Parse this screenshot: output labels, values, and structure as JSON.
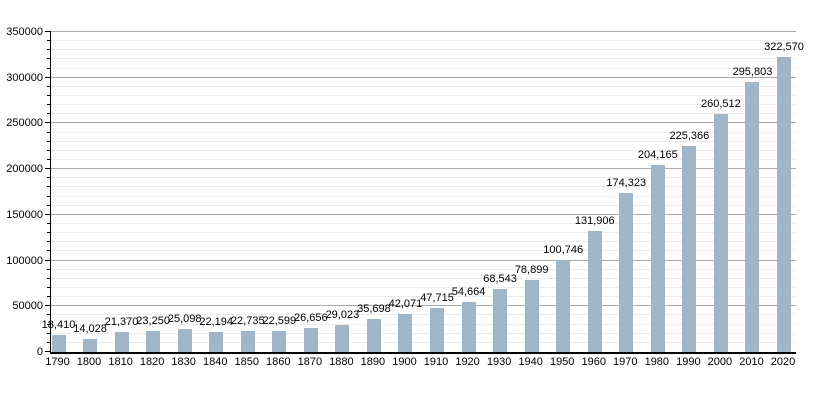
{
  "chart_data": {
    "type": "bar",
    "title": "",
    "xlabel": "",
    "ylabel": "",
    "categories": [
      "1790",
      "1800",
      "1810",
      "1820",
      "1830",
      "1840",
      "1850",
      "1860",
      "1870",
      "1880",
      "1890",
      "1900",
      "1910",
      "1920",
      "1930",
      "1940",
      "1950",
      "1960",
      "1970",
      "1980",
      "1990",
      "2000",
      "2010",
      "2020"
    ],
    "values": [
      18410,
      14028,
      21370,
      23250,
      25098,
      22194,
      22735,
      22599,
      26656,
      29023,
      35698,
      42071,
      47715,
      54664,
      68543,
      78899,
      100746,
      131906,
      174323,
      204165,
      225366,
      260512,
      295803,
      322570
    ],
    "value_labels": [
      "18,410",
      "14,028",
      "21,370",
      "23,250",
      "25,098",
      "22,194",
      "22,735",
      "22,599",
      "26,656",
      "29,023",
      "35,698",
      "42,071",
      "47,715",
      "54,664",
      "68,543",
      "78,899",
      "100,746",
      "131,906",
      "174,323",
      "204,165",
      "225,366",
      "260,512",
      "295,803",
      "322,570"
    ],
    "ylim": [
      0,
      350000
    ],
    "y_major_step": 50000,
    "y_minor_step": 10000,
    "y_tick_labels": [
      "0",
      "50000",
      "100000",
      "150000",
      "200000",
      "250000",
      "300000",
      "350000"
    ],
    "grid": true,
    "legend": "none",
    "colors": {
      "bar": "#a0b5c8",
      "major_grid": "#ababab",
      "minor_grid": "#ececec",
      "axis": "#000000",
      "text": "#000000",
      "background": "#ffffff"
    }
  }
}
